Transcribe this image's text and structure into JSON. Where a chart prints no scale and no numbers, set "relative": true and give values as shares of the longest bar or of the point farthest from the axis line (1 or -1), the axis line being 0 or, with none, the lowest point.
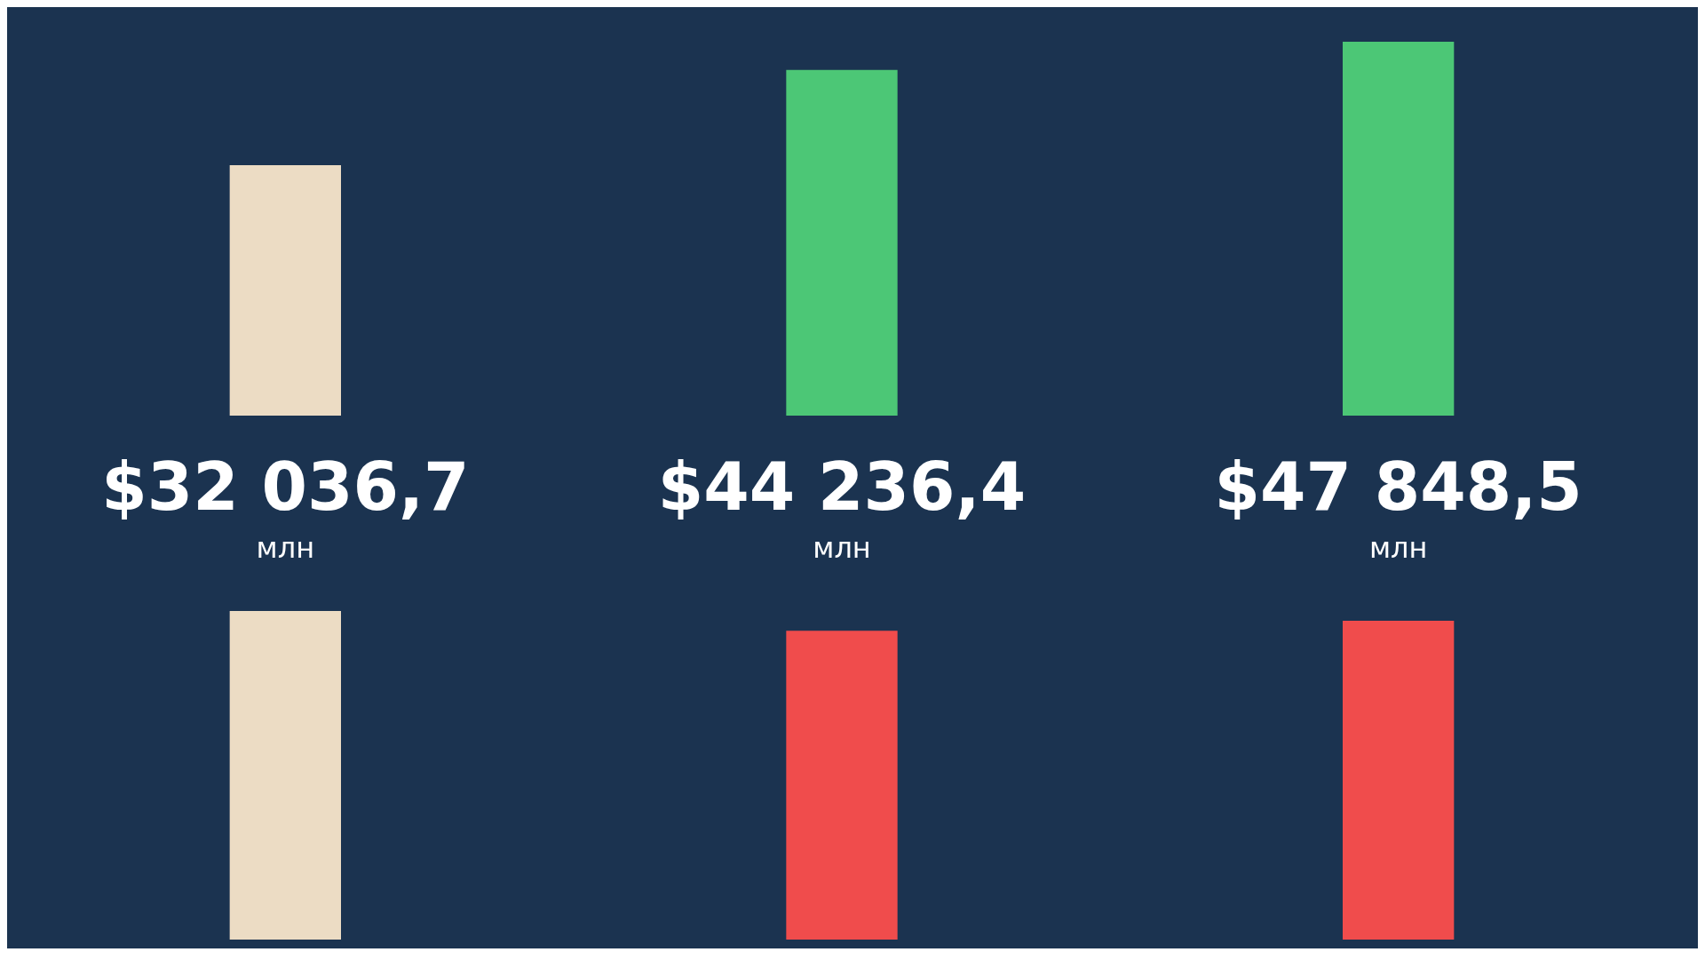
{
  "chart_data": [
    {
      "type": "bar",
      "categories": [
        null,
        null,
        null
      ],
      "values": [
        32036.7,
        44236.4,
        47848.5
      ],
      "colors": [
        "#ecdcc4",
        "#4cc776",
        "#4cc776"
      ],
      "value_labels": [
        "$32 036,7\nмлн",
        "$44 236,4\nмлн",
        "$47 848,5\nмлн"
      ],
      "legend": false,
      "tick_labels": false
    },
    {
      "type": "bar",
      "categories": [
        null,
        null,
        null
      ],
      "values": [
        1,
        0.94,
        0.97
      ],
      "colors": [
        "#ecdcc4",
        "#f04c4c",
        "#f04c4c"
      ],
      "relative": true,
      "legend": false,
      "tick_labels": false
    }
  ]
}
